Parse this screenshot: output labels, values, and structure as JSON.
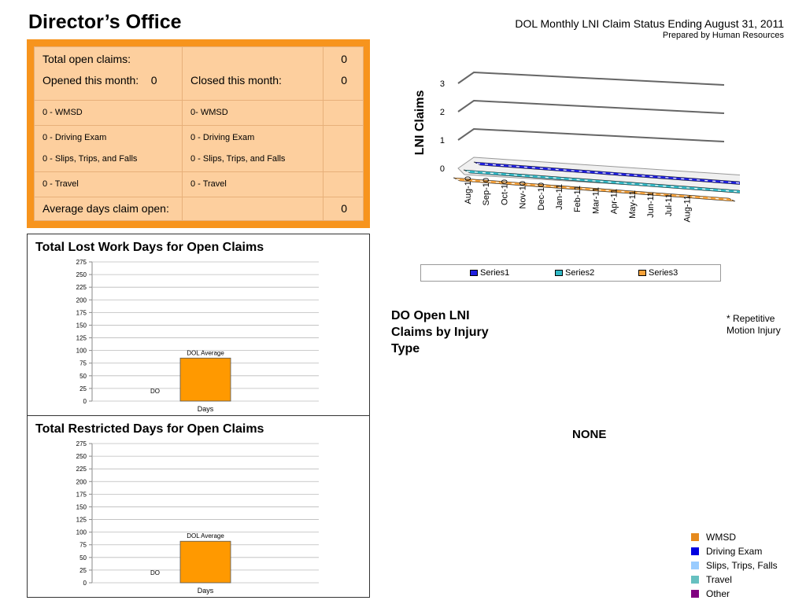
{
  "header": {
    "title": "Director’s Office",
    "line1": "DOL Monthly LNI Claim Status Ending August 31, 2011",
    "line2": "Prepared by Human Resources"
  },
  "summary": {
    "open_label": "Total open claims:",
    "open_value": "0",
    "opened_label": "Opened this month:",
    "opened_value": "0",
    "closed_label": "Closed this month:",
    "closed_value": "0",
    "opened_types": [
      "0 - WMSD",
      "0 - Driving Exam",
      "0 - Slips, Trips, and Falls",
      "0 - Travel"
    ],
    "closed_types": [
      "0- WMSD",
      "0 -  Driving Exam",
      "0 - Slips, Trips, and Falls",
      "0 - Travel"
    ],
    "avg_label": "Average days claim open:",
    "avg_value": "0"
  },
  "chart3d": {
    "type": "line",
    "ylabel": "LNI Claims",
    "yticks": [
      "0",
      "1",
      "2",
      "3"
    ],
    "ylim": [
      0,
      3
    ],
    "categories": [
      "Aug-10",
      "Sep-10",
      "Oct-10",
      "Nov-10",
      "Dec-10",
      "Jan-11",
      "Feb-11",
      "Mar-11",
      "Apr-11",
      "May-11",
      "Jun-11",
      "Jul-11",
      "Aug-11"
    ],
    "series": [
      {
        "name": "Series1",
        "color": "#1f1fe0",
        "values": [
          0,
          0,
          0,
          0,
          0,
          0,
          0,
          0,
          0,
          0,
          0,
          0,
          0
        ]
      },
      {
        "name": "Series2",
        "color": "#31b9c6",
        "values": [
          0,
          0,
          0,
          0,
          0,
          0,
          0,
          0,
          0,
          0,
          0,
          0,
          0
        ]
      },
      {
        "name": "Series3",
        "color": "#f7a23a",
        "values": [
          0,
          0,
          0,
          0,
          0,
          0,
          0,
          0,
          0,
          0,
          0,
          0,
          0
        ]
      }
    ]
  },
  "chart_data": [
    {
      "type": "bar",
      "title": "Total Lost Work Days for Open Claims",
      "categories": [
        "Days"
      ],
      "series": [
        {
          "name": "DO",
          "values": [
            0
          ]
        },
        {
          "name": "DOL Average",
          "values": [
            85
          ]
        }
      ],
      "yticks": [
        "0",
        "25",
        "50",
        "75",
        "100",
        "125",
        "150",
        "175",
        "200",
        "225",
        "250",
        "275"
      ],
      "ylim": [
        0,
        275
      ],
      "color": "#ff9900"
    },
    {
      "type": "bar",
      "title": "Total Restricted Days for Open Claims",
      "categories": [
        "Days"
      ],
      "series": [
        {
          "name": "DO",
          "values": [
            0
          ]
        },
        {
          "name": "DOL Average",
          "values": [
            82
          ]
        }
      ],
      "yticks": [
        "0",
        "25",
        "50",
        "75",
        "100",
        "125",
        "150",
        "175",
        "200",
        "225",
        "250",
        "275"
      ],
      "ylim": [
        0,
        275
      ],
      "color": "#ff9900"
    }
  ],
  "injury": {
    "title": "DO Open LNI Claims by Injury Type",
    "note": "* Repetitive Motion Injury",
    "none": "NONE",
    "legend": [
      {
        "label": "WMSD",
        "color": "#e68a1d"
      },
      {
        "label": "Driving Exam",
        "color": "#0000e0"
      },
      {
        "label": "Slips, Trips, Falls",
        "color": "#99ccff"
      },
      {
        "label": "Travel",
        "color": "#66c0c0"
      },
      {
        "label": "Other",
        "color": "#800080"
      }
    ]
  }
}
